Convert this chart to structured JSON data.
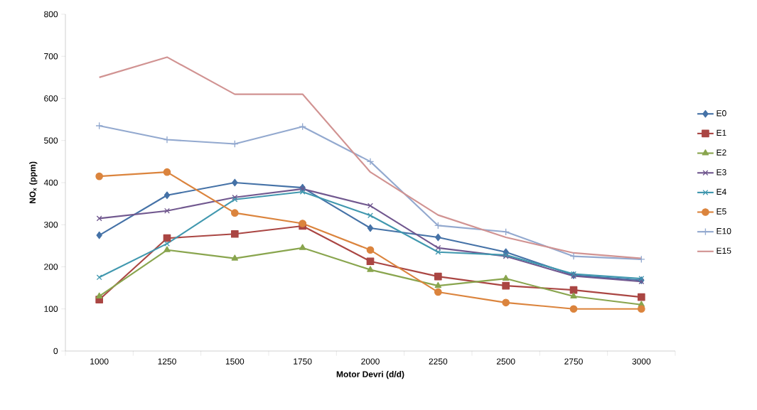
{
  "chart_data": {
    "type": "line",
    "xlabel": "Motor Devri (d/d)",
    "ylabel": "NO$_{x}$ (ppm)",
    "categories": [
      "1000",
      "1250",
      "1500",
      "1750",
      "2000",
      "2250",
      "2500",
      "2750",
      "3000"
    ],
    "ylim": [
      0,
      800
    ],
    "yticks": [
      0,
      100,
      200,
      300,
      400,
      500,
      600,
      700,
      800
    ],
    "legend": "right",
    "grid": false,
    "line_style": "solid",
    "series": [
      {
        "name": "E0",
        "color": "#4572a7",
        "marker": "diamond",
        "values": [
          275,
          370,
          400,
          388,
          292,
          270,
          235,
          180,
          168
        ]
      },
      {
        "name": "E1",
        "color": "#aa4643",
        "marker": "square",
        "values": [
          122,
          268,
          278,
          297,
          213,
          177,
          155,
          145,
          128
        ]
      },
      {
        "name": "E2",
        "color": "#89a54e",
        "marker": "triangle",
        "values": [
          130,
          240,
          220,
          245,
          193,
          155,
          172,
          130,
          110
        ]
      },
      {
        "name": "E3",
        "color": "#71588f",
        "marker": "cross",
        "values": [
          315,
          333,
          365,
          385,
          345,
          245,
          225,
          178,
          165
        ]
      },
      {
        "name": "E4",
        "color": "#4198af",
        "marker": "cross",
        "values": [
          175,
          255,
          360,
          378,
          322,
          235,
          228,
          183,
          172
        ]
      },
      {
        "name": "E5",
        "color": "#db843d",
        "marker": "circle",
        "values": [
          415,
          425,
          328,
          303,
          240,
          140,
          115,
          100,
          100
        ]
      },
      {
        "name": "E10",
        "color": "#93a9cf",
        "marker": "plus",
        "values": [
          535,
          502,
          492,
          533,
          450,
          298,
          283,
          225,
          218
        ]
      },
      {
        "name": "E15",
        "color": "#d19392",
        "marker": "none",
        "values": [
          650,
          698,
          610,
          610,
          425,
          323,
          270,
          233,
          220
        ]
      }
    ]
  }
}
